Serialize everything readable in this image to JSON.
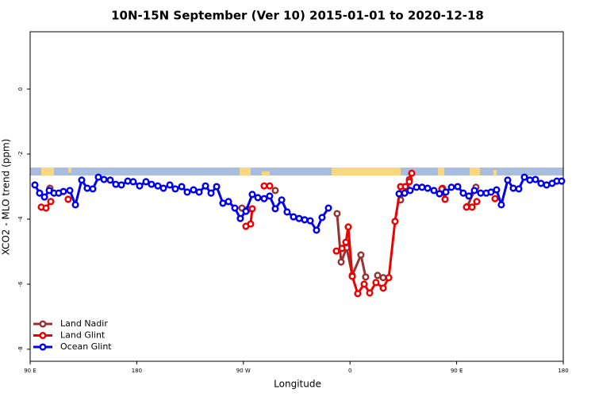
{
  "chart_data": {
    "type": "line",
    "title": "10N-15N September (Ver 10)   2015-01-01 to 2020-12-18",
    "xlabel": "Longitude",
    "ylabel": "XCO2 - MLO trend (ppm)",
    "xlim": [
      90,
      540
    ],
    "xticks": [
      {
        "value": 90,
        "label": "90 E"
      },
      180,
      {
        "value": 270,
        "label": "90 W"
      },
      {
        "value": 360,
        "label": "0"
      },
      {
        "value": 450,
        "label": "90 E"
      },
      {
        "value": 540,
        "label": "180"
      }
    ],
    "ylim": [
      -8.37,
      1.76
    ],
    "yticks": [
      0,
      -2,
      -4,
      -6,
      -8
    ],
    "legend": "bottom left",
    "series": [
      {
        "name": "Land Nadir",
        "color": "#993333",
        "x": [
          106.7,
          null,
          268.8,
          273.5,
          null,
          296.9,
          null,
          349.1,
          352.5,
          357.2,
          361.9,
          369.2,
          373.2,
          null,
          383.3,
          388.0,
          null,
          402.7,
          407.4,
          410.1,
          null,
          438.2,
          null,
          459.0,
          466.3
        ],
        "values": [
          -3.05,
          null,
          -3.66,
          -3.71,
          null,
          -3.12,
          null,
          -3.83,
          -5.32,
          -4.88,
          -5.73,
          -5.1,
          -5.78,
          null,
          -5.73,
          -5.8,
          null,
          -3.41,
          -3.0,
          -2.78,
          null,
          -3.05,
          null,
          -3.61,
          -3.02
        ]
      },
      {
        "name": "Land Glint",
        "color": "#ee0000",
        "x": [
          99.4,
          103.4,
          107.4,
          null,
          122.1,
          null,
          272.1,
          276.1,
          277.5,
          null,
          287.5,
          292.2,
          null,
          348.5,
          353.2,
          356.5,
          358.5,
          361.9,
          366.5,
          371.9,
          376.6,
          381.9,
          388.0,
          392.7,
          398.0,
          402.7,
          406.7,
          410.1,
          412.1,
          null,
          437.5,
          440.2,
          null,
          458.3,
          463.0,
          467.0,
          null,
          482.4
        ],
        "values": [
          -3.63,
          -3.66,
          -3.46,
          null,
          -3.39,
          null,
          -4.22,
          -4.15,
          -3.68,
          null,
          -2.98,
          -2.98,
          null,
          -4.98,
          -4.9,
          -4.71,
          -4.24,
          -5.76,
          -6.29,
          -6.0,
          -6.27,
          -5.95,
          -6.12,
          -5.8,
          -4.07,
          -3.0,
          -3.0,
          -2.85,
          -2.59,
          null,
          -3.07,
          -3.39,
          null,
          -3.63,
          -3.63,
          -3.46,
          null,
          -3.37
        ]
      },
      {
        "name": "Ocean Glint",
        "color": "#0000ee",
        "x": [
          94.0,
          98.0,
          102.1,
          106.1,
          110.1,
          114.1,
          118.1,
          123.5,
          128.2,
          133.5,
          138.2,
          142.9,
          147.6,
          152.3,
          157.6,
          162.3,
          167.0,
          172.4,
          177.0,
          182.4,
          187.8,
          192.4,
          197.8,
          202.5,
          207.9,
          212.5,
          217.9,
          222.6,
          227.9,
          232.6,
          238.0,
          242.7,
          247.4,
          252.7,
          257.4,
          262.8,
          267.4,
          272.1,
          277.5,
          282.2,
          287.5,
          292.2,
          296.9,
          302.3,
          306.9,
          312.3,
          317.0,
          321.7,
          326.4,
          331.7,
          336.4,
          341.8,
          null,
          401.4,
          406.1,
          410.7,
          416.1,
          420.8,
          425.5,
          430.8,
          435.5,
          440.9,
          445.6,
          450.9,
          455.6,
          460.3,
          465.0,
          470.3,
          475.0,
          479.0,
          483.7,
          487.7,
          493.1,
          497.8,
          502.5,
          507.2,
          511.8,
          516.5,
          521.2,
          525.9,
          530.6,
          534.6,
          538.6
        ],
        "values": [
          -2.95,
          -3.2,
          -3.32,
          -3.12,
          -3.2,
          -3.2,
          -3.15,
          -3.12,
          -3.56,
          -2.8,
          -3.05,
          -3.07,
          -2.71,
          -2.78,
          -2.8,
          -2.93,
          -2.95,
          -2.83,
          -2.85,
          -2.98,
          -2.85,
          -2.93,
          -2.98,
          -3.05,
          -2.95,
          -3.07,
          -3.0,
          -3.17,
          -3.1,
          -3.17,
          -2.98,
          -3.2,
          -3.0,
          -3.51,
          -3.46,
          -3.66,
          -3.98,
          -3.76,
          -3.24,
          -3.34,
          -3.37,
          -3.29,
          -3.68,
          -3.41,
          -3.78,
          -3.93,
          -3.98,
          -4.02,
          -4.05,
          -4.34,
          -3.95,
          -3.66,
          null,
          -3.22,
          -3.2,
          -3.12,
          -3.02,
          -3.02,
          -3.05,
          -3.12,
          -3.22,
          -3.17,
          -3.02,
          -3.0,
          -3.2,
          -3.29,
          -3.12,
          -3.2,
          -3.2,
          -3.17,
          -3.1,
          -3.56,
          -2.8,
          -3.05,
          -3.07,
          -2.71,
          -2.8,
          -2.78,
          -2.9,
          -2.95,
          -2.9,
          -2.83,
          -2.83
        ]
      }
    ]
  }
}
